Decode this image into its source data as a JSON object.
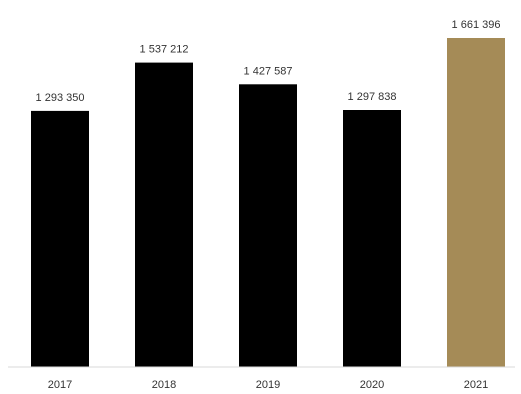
{
  "chart_data": {
    "type": "bar",
    "categories": [
      "2017",
      "2018",
      "2019",
      "2020",
      "2021"
    ],
    "values": [
      1293350,
      1537212,
      1427587,
      1297838,
      1661396
    ],
    "value_labels": [
      "1 293 350",
      "1 537 212",
      "1 427 587",
      "1 297 838",
      "1 661 396"
    ],
    "title": "",
    "xlabel": "",
    "ylabel": "",
    "ylim": [
      0,
      1661396
    ],
    "grid": false,
    "legend": "none",
    "colors": {
      "default_bar": "#000000",
      "highlight_bar": "#a58b57",
      "baseline": "#d9d9d9",
      "text": "#333333"
    },
    "highlight_index": 4
  }
}
